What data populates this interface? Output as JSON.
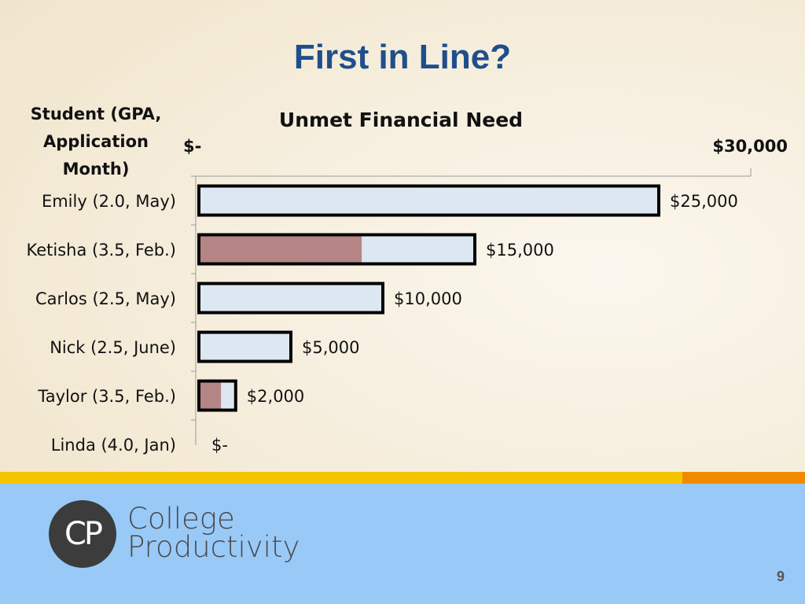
{
  "slide": {
    "title": "First in Line?",
    "page_number": "9"
  },
  "logo": {
    "initials": "CP",
    "name": "College\nProductivity"
  },
  "chart_data": {
    "type": "bar",
    "orientation": "horizontal",
    "title": "Unmet Financial Need",
    "category_header": "Student (GPA,\nApplication\nMonth)",
    "axis_min_label": "$-",
    "axis_max_label": "$30,000",
    "xlim": [
      0,
      30000
    ],
    "categories": [
      "Emily (2.0, May)",
      "Ketisha (3.5, Feb.)",
      "Carlos (2.5, May)",
      "Nick (2.5, June)",
      "Taylor (3.5, Feb.)",
      "Linda (4.0, Jan)"
    ],
    "values": [
      25000,
      15000,
      10000,
      5000,
      2000,
      0
    ],
    "value_labels": [
      "$25,000",
      "$15,000",
      "$10,000",
      "$5,000",
      "$2,000",
      "$-"
    ],
    "highlight_fraction": [
      0,
      0.59,
      0,
      0,
      0.6,
      0
    ],
    "colors": {
      "bar_fill": "#dde7f2",
      "bar_outline": "#000000",
      "highlight": "#b58585"
    }
  }
}
